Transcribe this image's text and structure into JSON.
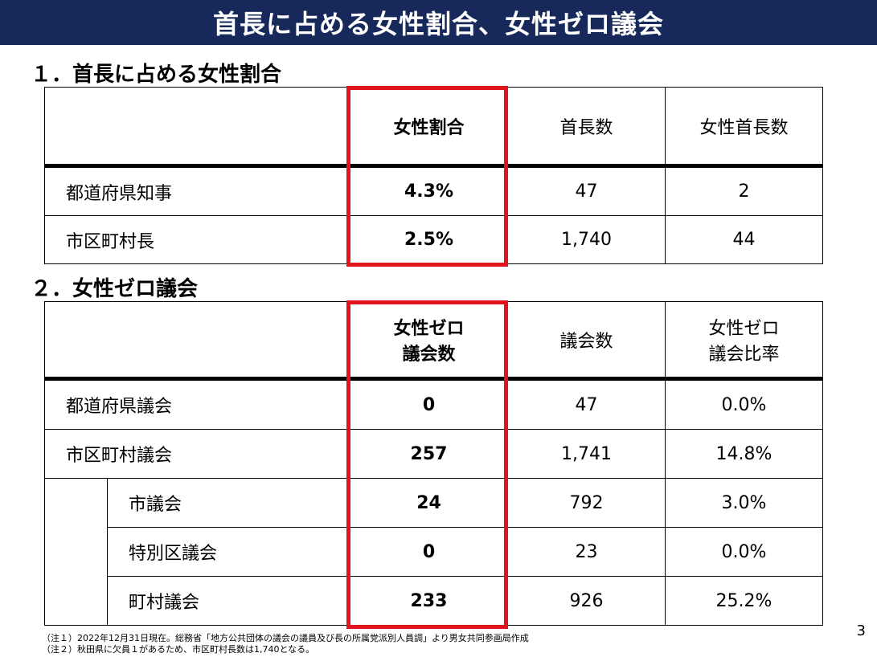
{
  "header": {
    "title": "首長に占める女性割合、女性ゼロ議会"
  },
  "section1": {
    "title": "１．首長に占める女性割合",
    "columns": [
      "",
      "女性割合",
      "首長数",
      "女性首長数"
    ],
    "rows": [
      {
        "label": "都道府県知事",
        "ratio": "4.3%",
        "count": "47",
        "female": "2"
      },
      {
        "label": "市区町村長",
        "ratio": "2.5%",
        "count": "1,740",
        "female": "44"
      }
    ]
  },
  "section2": {
    "title": "２．女性ゼロ議会",
    "columns": [
      "",
      "女性ゼロ\n議会数",
      "議会数",
      "女性ゼロ\n議会比率"
    ],
    "col1_line1": "女性ゼロ",
    "col1_line2": "議会数",
    "col3_line1": "女性ゼロ",
    "col3_line2": "議会比率",
    "col2": "議会数",
    "rows": [
      {
        "label": "都道府県議会",
        "zero": "0",
        "count": "47",
        "rate": "0.0%"
      },
      {
        "label": "市区町村議会",
        "zero": "257",
        "count": "1,741",
        "rate": "14.8%"
      },
      {
        "label": "市議会",
        "zero": "24",
        "count": "792",
        "rate": "3.0%"
      },
      {
        "label": "特別区議会",
        "zero": "0",
        "count": "23",
        "rate": "0.0%"
      },
      {
        "label": "町村議会",
        "zero": "233",
        "count": "926",
        "rate": "25.2%"
      }
    ]
  },
  "notes": [
    "（注１）2022年12月31日現在。総務省「地方公共団体の議会の議員及び長の所属党派別人員調」より男女共同参画局作成",
    "（注２）秋田県に欠員１があるため、市区町村長数は1,740となる。"
  ],
  "page_number": "3",
  "colors": {
    "header_bg": "#17295a",
    "highlight": "#e0141a"
  }
}
